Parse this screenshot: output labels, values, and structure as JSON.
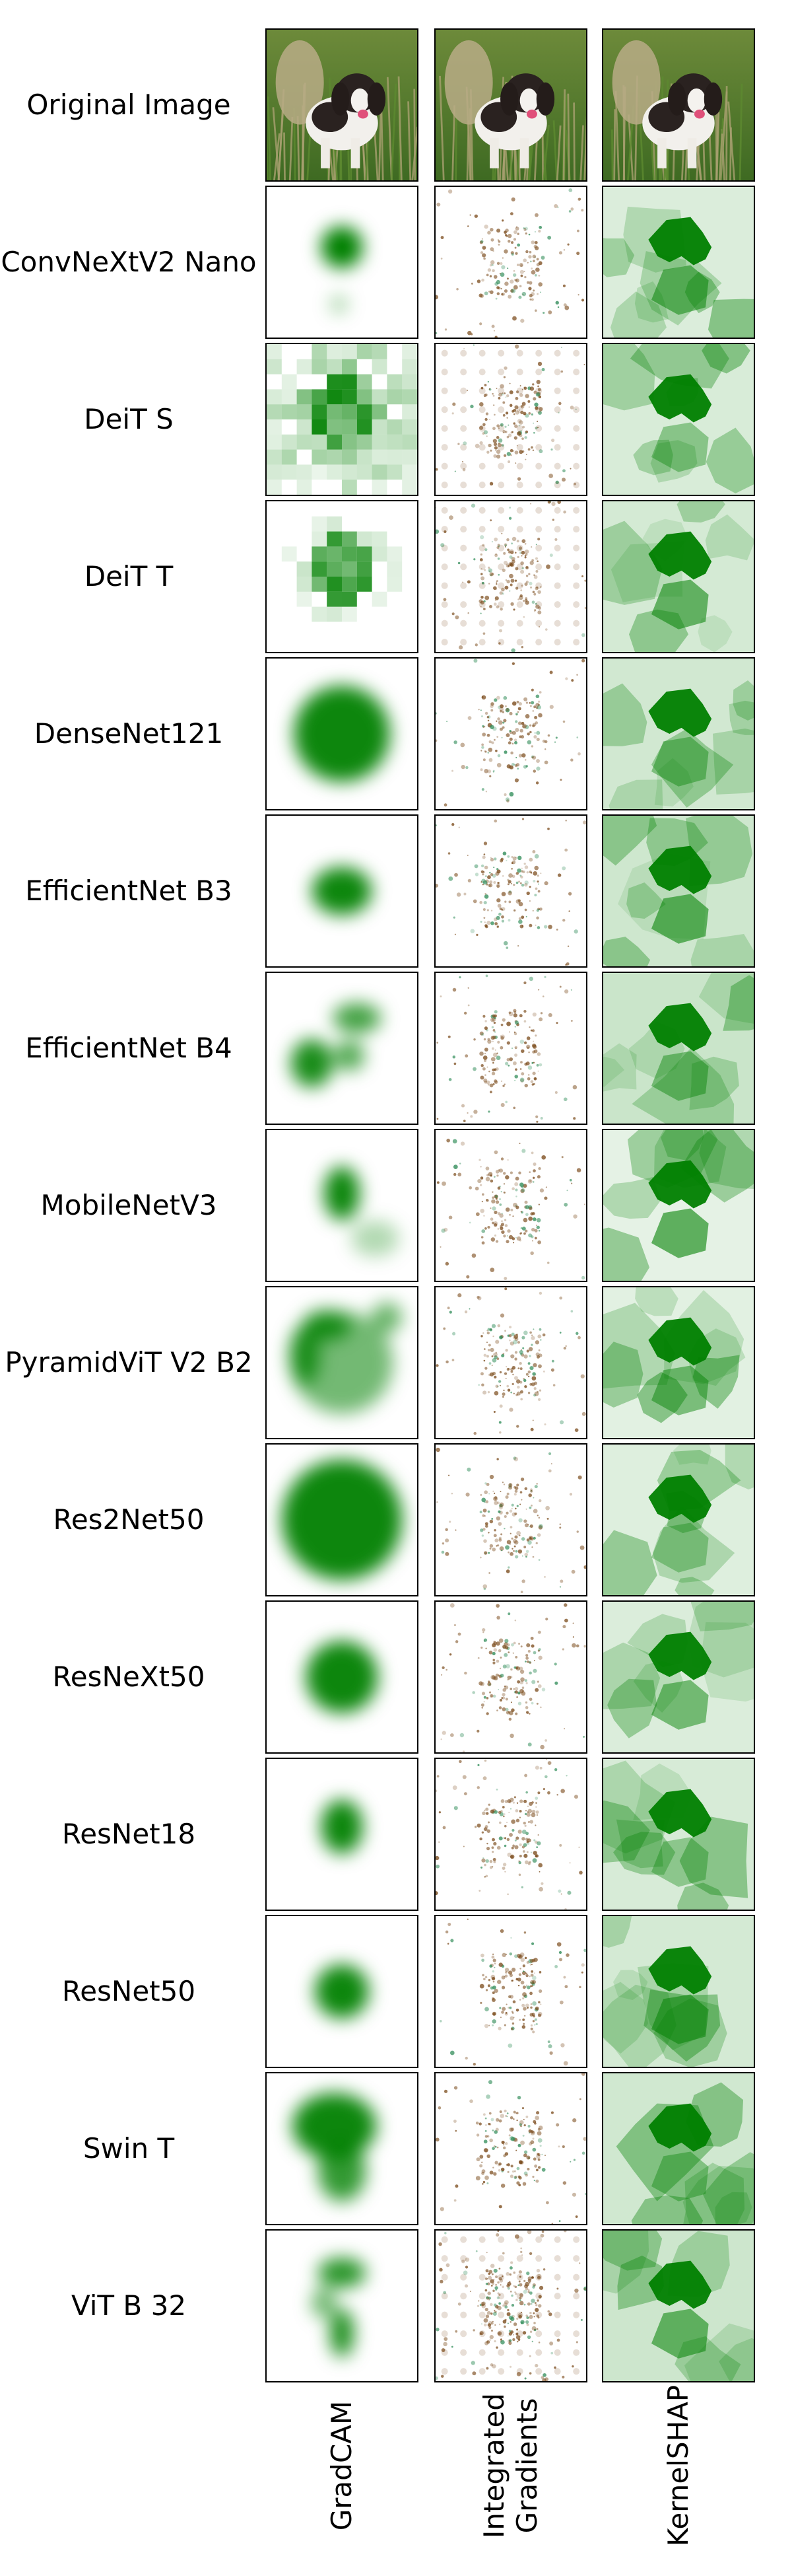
{
  "columns": [
    {
      "label": "GradCAM"
    },
    {
      "label": "Integrated\nGradients"
    },
    {
      "label": "KernelSHAP"
    }
  ],
  "original_row_label": "Original Image",
  "models": [
    "ConvNeXtV2 Nano",
    "DeiT S",
    "DeiT T",
    "DenseNet121",
    "EfficientNet B3",
    "EfficientNet B4",
    "MobileNetV3",
    "PyramidViT V2 B2",
    "Res2Net50",
    "ResNeXt50",
    "ResNet18",
    "ResNet50",
    "Swin T",
    "ViT B 32"
  ],
  "colors": {
    "heat": "#008000",
    "ig_pos": "#7a4a1a",
    "ig_neg": "#2e8b57",
    "grass": "#4f7a2c",
    "dog_black": "#2a2220"
  }
}
